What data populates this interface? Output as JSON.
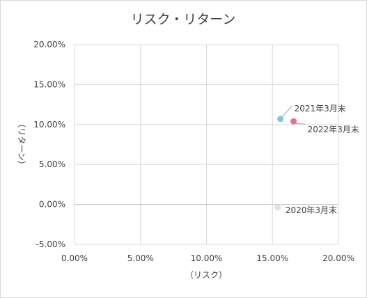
{
  "chart_data": {
    "type": "scatter",
    "title": "リスク・リターン",
    "xlabel": "（リスク）",
    "ylabel": "（リターン）",
    "xlim": [
      0,
      0.2
    ],
    "ylim": [
      -0.05,
      0.2
    ],
    "x_ticks": [
      "0.00%",
      "5.00%",
      "10.00%",
      "15.00%",
      "20.00%"
    ],
    "y_ticks": [
      "-5.00%",
      "0.00%",
      "5.00%",
      "10.00%",
      "15.00%",
      "20.00%"
    ],
    "grid": true,
    "points": [
      {
        "label": "2021年3月末",
        "x": 0.156,
        "y": 0.107,
        "color": "#7ec8dc"
      },
      {
        "label": "2022年3月末",
        "x": 0.166,
        "y": 0.104,
        "color": "#e8708a"
      },
      {
        "label": "2020年3月末",
        "x": 0.154,
        "y": -0.004,
        "color": "#e3e3e3"
      }
    ]
  }
}
